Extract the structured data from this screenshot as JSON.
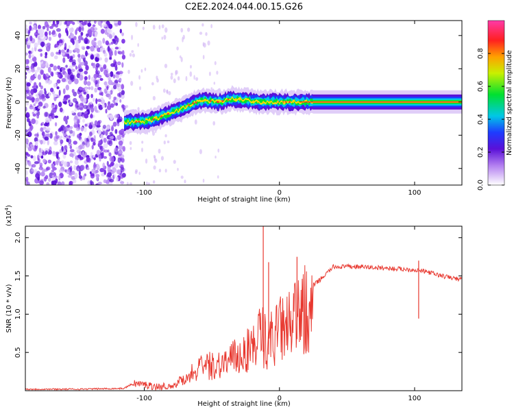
{
  "title": "C2E2.2024.044.00.15.G26",
  "chart_data": [
    {
      "type": "heatmap",
      "name": "spectrogram",
      "xlabel": "Height of straight line (km)",
      "ylabel": "Frequency (Hz)",
      "xlim": [
        -188,
        135
      ],
      "ylim": [
        -50,
        49
      ],
      "xticks": [
        -100,
        0,
        100
      ],
      "xtick_labels": [
        "-100",
        "0",
        "100"
      ],
      "yticks": [
        -40,
        -20,
        0,
        20,
        40
      ],
      "ytick_labels": [
        "-40",
        "-20",
        "0",
        "20",
        "40"
      ],
      "noise_region": [
        -188,
        -115
      ],
      "signal_trace": {
        "x": [
          -115,
          -105,
          -95,
          -85,
          -75,
          -65,
          -55,
          -45,
          -35,
          -25,
          -15,
          -5,
          5,
          15,
          25,
          135
        ],
        "y": [
          -12,
          -12,
          -11,
          -8,
          -5,
          -1,
          1,
          0,
          2,
          1,
          0,
          0,
          0,
          0,
          0,
          0
        ]
      },
      "colorbar": {
        "label": "Normalized spectral amplitude",
        "ticks": [
          0.0,
          0.2,
          0.4,
          0.6,
          0.8
        ],
        "tick_labels": [
          "0.0",
          "0.2",
          "0.4",
          "0.6",
          "0.8"
        ],
        "range": [
          0,
          1
        ]
      }
    },
    {
      "type": "line",
      "name": "snr",
      "xlabel": "Height of straight line (km)",
      "ylabel": "SNR (10 * v/v)",
      "scale_label": "(x10",
      "scale_exp": "4",
      "scale_close": ")",
      "xlim": [
        -188,
        135
      ],
      "ylim": [
        0,
        2.15
      ],
      "xticks": [
        -100,
        0,
        100
      ],
      "xtick_labels": [
        "-100",
        "0",
        "100"
      ],
      "yticks": [
        0.5,
        1.0,
        1.5,
        2.0
      ],
      "ytick_labels": [
        "0.5",
        "1.0",
        "1.5",
        "2.0"
      ],
      "color": "#e8382f",
      "series": [
        {
          "name": "SNR",
          "x": [
            -188,
            -150,
            -115,
            -108,
            -100,
            -90,
            -80,
            -70,
            -60,
            -50,
            -40,
            -30,
            -20,
            -13,
            -10,
            0,
            10,
            20,
            30,
            40,
            60,
            80,
            100,
            110,
            120,
            135
          ],
          "y": [
            0.02,
            0.02,
            0.03,
            0.1,
            0.08,
            0.05,
            0.07,
            0.2,
            0.35,
            0.4,
            0.45,
            0.55,
            0.7,
            0.9,
            0.75,
            0.95,
            1.05,
            1.3,
            1.45,
            1.62,
            1.62,
            1.6,
            1.58,
            1.55,
            1.5,
            1.45
          ]
        }
      ],
      "spikes": [
        {
          "x": -12,
          "y": 2.15
        },
        {
          "x": -8,
          "y": 1.68
        },
        {
          "x": 13,
          "y": 1.75
        },
        {
          "x": 103,
          "y": 1.7
        }
      ]
    }
  ]
}
